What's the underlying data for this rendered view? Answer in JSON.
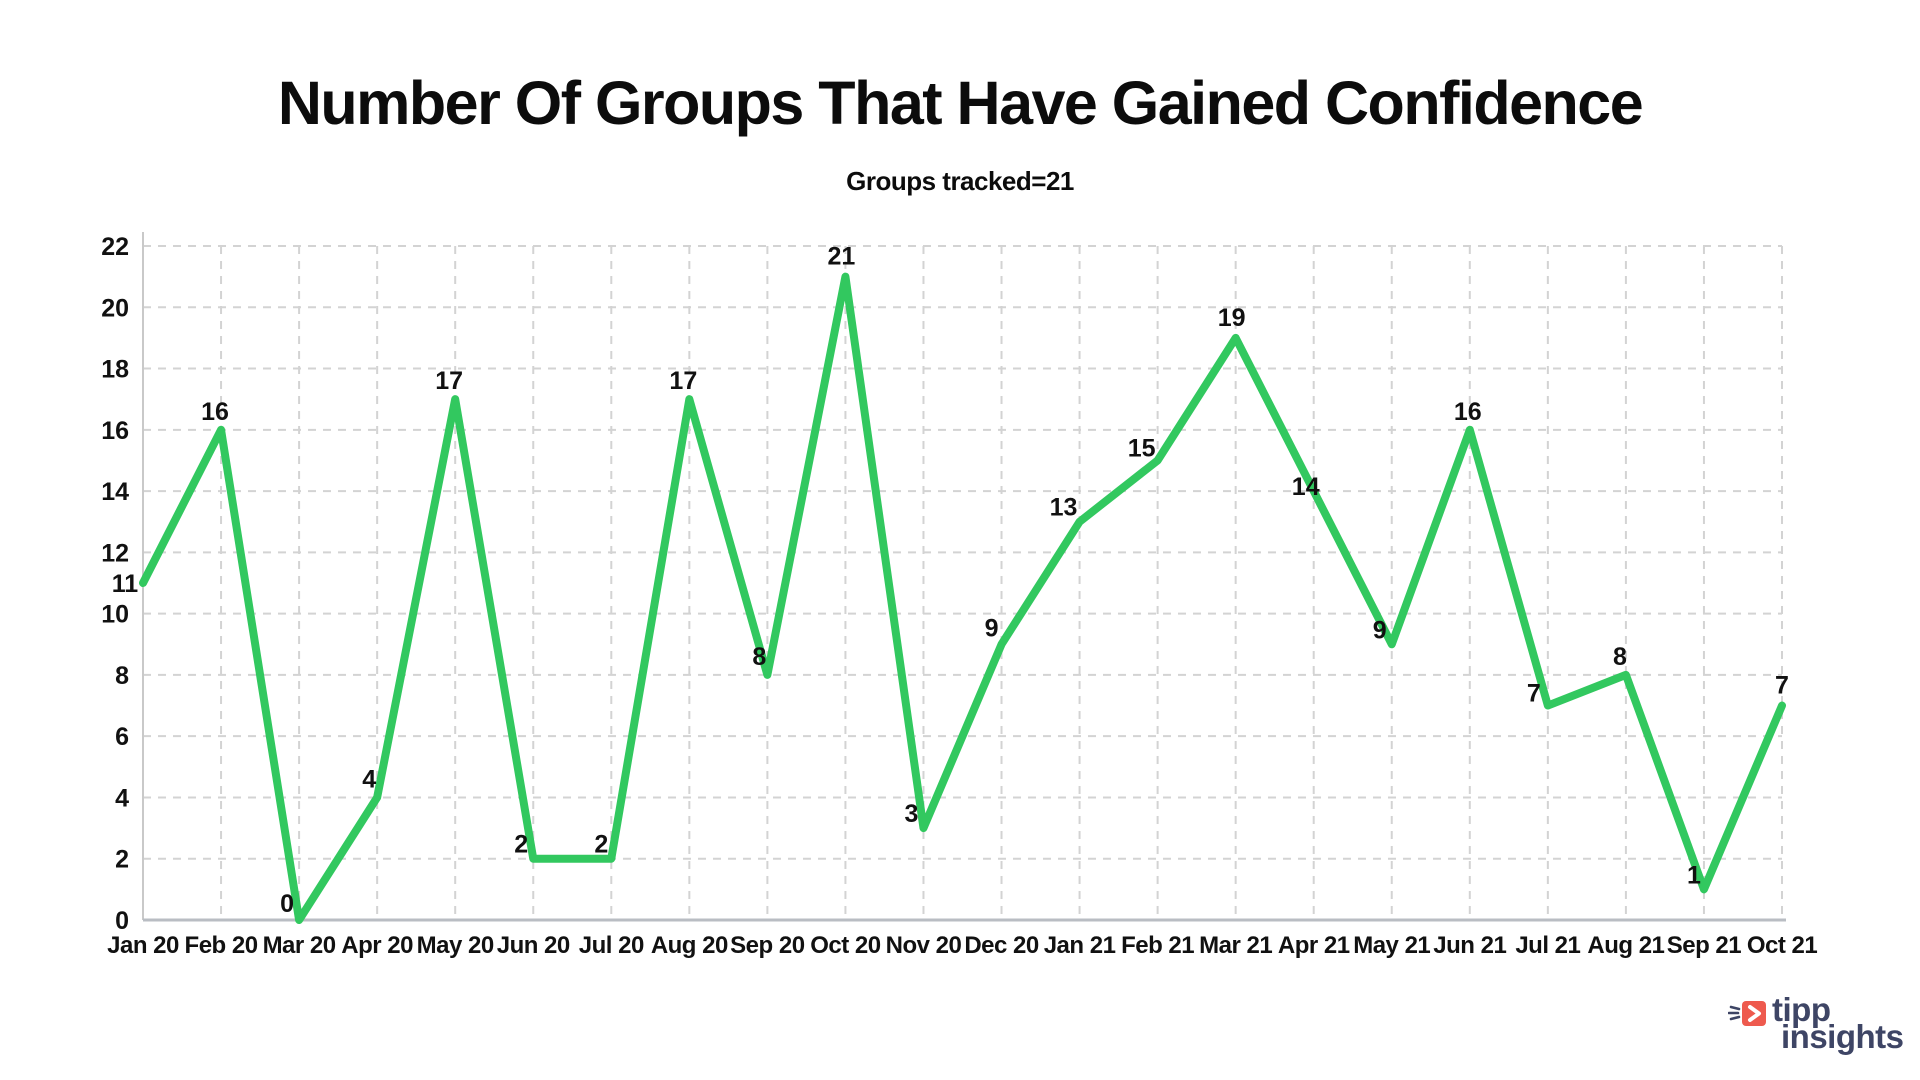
{
  "title": "Number Of Groups That Have Gained Confidence",
  "subtitle": "Groups tracked=21",
  "chart_data": {
    "type": "line",
    "categories": [
      "Jan 20",
      "Feb 20",
      "Mar 20",
      "Apr 20",
      "May 20",
      "Jun 20",
      "Jul 20",
      "Aug 20",
      "Sep 20",
      "Oct 20",
      "Nov 20",
      "Dec 20",
      "Jan 21",
      "Feb 21",
      "Mar 21",
      "Apr 21",
      "May 21",
      "Jun 21",
      "Jul 21",
      "Aug 21",
      "Sep 21",
      "Oct 21"
    ],
    "values": [
      11,
      16,
      0,
      4,
      17,
      2,
      2,
      17,
      8,
      21,
      3,
      9,
      13,
      15,
      19,
      14,
      9,
      16,
      7,
      8,
      1,
      7
    ],
    "point_labels": [
      "11",
      "16",
      "0",
      "4",
      "17",
      "2",
      "2",
      "17",
      "8",
      "21",
      "3",
      "9",
      "13",
      "15",
      "19",
      "14",
      "9",
      "16",
      "7",
      "8",
      "1",
      "7"
    ],
    "title": "Number Of Groups That Have Gained Confidence",
    "xlabel": "",
    "ylabel": "",
    "ylim": [
      0,
      22
    ],
    "ytick_step": 2,
    "yticks": [
      "0",
      "2",
      "4",
      "6",
      "8",
      "10",
      "12",
      "14",
      "16",
      "18",
      "20",
      "22"
    ],
    "grid": true,
    "legend": "none",
    "line_color": "#32c85f",
    "grid_color": "#d3d3d3",
    "axis_color": "#b9bdc3",
    "label_color": "#111111"
  },
  "logo": {
    "text_top": "tipp",
    "text_bottom": "insights",
    "text_color": "#3e4565",
    "icon_color": "#ee5a4e",
    "icon": "megaphone-icon"
  }
}
